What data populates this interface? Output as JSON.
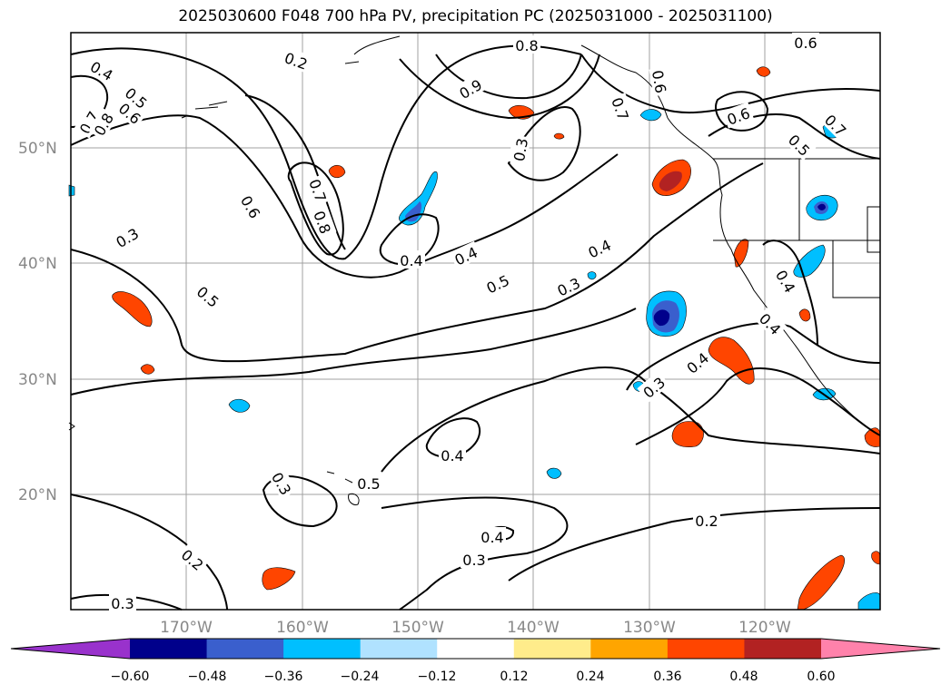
{
  "title": "2025030600 F048 700 hPa PV, precipitation PC (2025031000 - 2025031100)",
  "map": {
    "lat_labels": [
      "50°N",
      "40°N",
      "30°N",
      "20°N"
    ],
    "lon_labels": [
      "170°W",
      "160°W",
      "150°W",
      "140°W",
      "130°W",
      "120°W"
    ],
    "contour_labels": [
      "0.4",
      "0.5",
      "0.6",
      "0.7",
      "0.8",
      "0.6",
      "0.7",
      "0.8",
      "0.3",
      "0.4",
      "0.3",
      "0.4",
      "0.5",
      "0.6",
      "0.7",
      "0.8",
      "0.9",
      "0.3",
      "0.4",
      "0.5",
      "0.3",
      "0.4",
      "0.4",
      "0.5",
      "0.4",
      "0.5",
      "0.6",
      "0.6",
      "0.7",
      "0.4",
      "0.3",
      "0.4",
      "0.3",
      "0.2",
      "0.2",
      "0.3",
      "0.2"
    ],
    "colors": {
      "contour": "#000000",
      "grid": "#a0a0a0",
      "coast": "#000000",
      "neg_dark": "#00008b",
      "neg_mid": "#3a5fcd",
      "neg_light": "#00bfff",
      "pos_light": "#ffa500",
      "pos_mid": "#ff4500",
      "pos_dark": "#b22222"
    }
  },
  "colorbar": {
    "tick_labels": [
      "−0.60",
      "−0.48",
      "−0.36",
      "−0.24",
      "−0.12",
      "0.12",
      "0.24",
      "0.36",
      "0.48",
      "0.60"
    ],
    "colors": [
      "#9932cc",
      "#00008b",
      "#3a5fcd",
      "#00bfff",
      "#b0e2ff",
      "#ffffff",
      "#ffec8b",
      "#ffa500",
      "#ff4500",
      "#b22222",
      "#ff82ab"
    ]
  }
}
